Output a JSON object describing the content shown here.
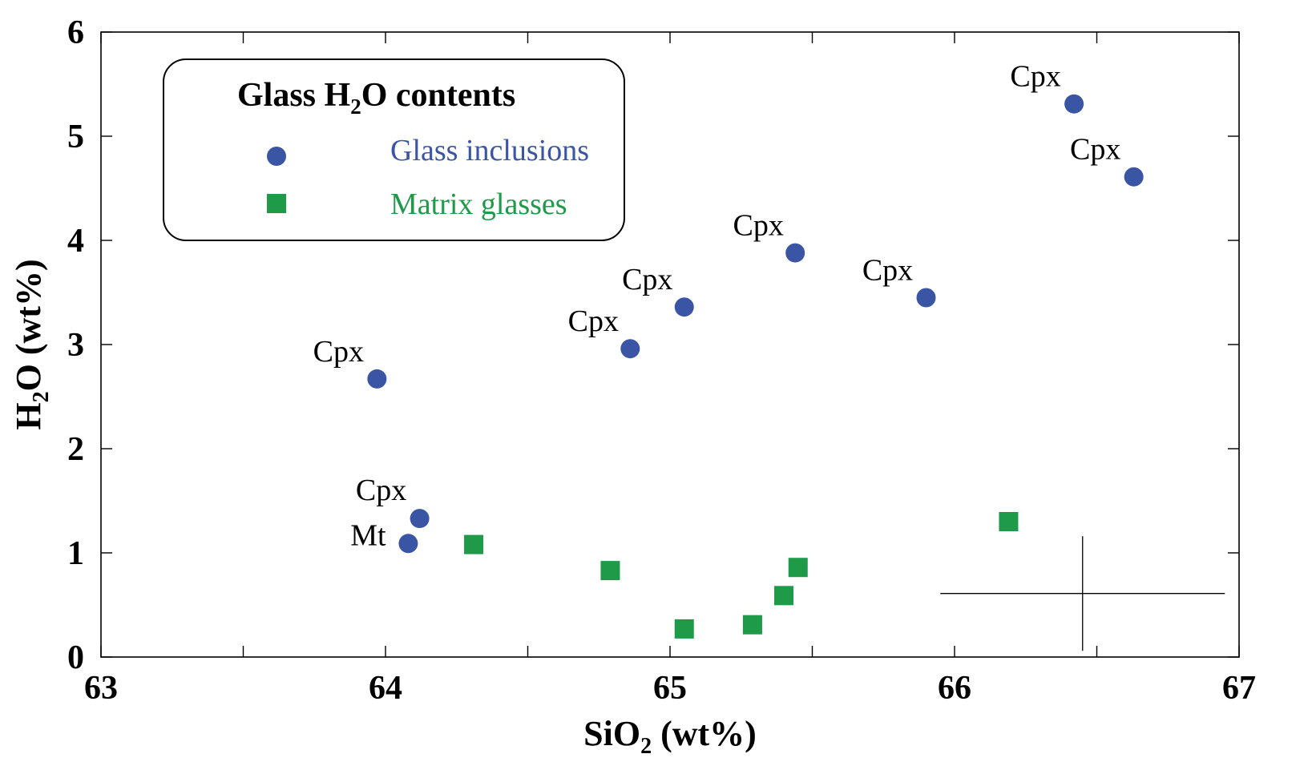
{
  "chart_data": {
    "type": "scatter",
    "xlabel": "SiO",
    "xlabel_sub": "2",
    "xlabel_suffix": " (wt%)",
    "ylabel": "H",
    "ylabel_sub": "2",
    "ylabel_suffix": "O (wt%)",
    "xlim": [
      63,
      67
    ],
    "ylim": [
      0,
      6
    ],
    "x_ticks": [
      "63",
      "64",
      "65",
      "66",
      "67"
    ],
    "y_ticks": [
      "0",
      "1",
      "2",
      "3",
      "4",
      "5",
      "6"
    ],
    "grid": false,
    "legend": {
      "title": "Glass H",
      "title_sub": "2",
      "title_suffix": "O contents",
      "placement": "top-left"
    },
    "series": [
      {
        "name": "Glass inclusions",
        "marker": "circle",
        "color": "#3a55a4",
        "points": [
          {
            "x": 63.97,
            "y": 2.67,
            "label": "Cpx"
          },
          {
            "x": 64.12,
            "y": 1.33,
            "label": "Cpx"
          },
          {
            "x": 64.08,
            "y": 1.09,
            "label": "Mt"
          },
          {
            "x": 64.86,
            "y": 2.96,
            "label": "Cpx"
          },
          {
            "x": 65.05,
            "y": 3.36,
            "label": "Cpx"
          },
          {
            "x": 65.44,
            "y": 3.88,
            "label": "Cpx"
          },
          {
            "x": 65.9,
            "y": 3.45,
            "label": "Cpx"
          },
          {
            "x": 66.42,
            "y": 5.31,
            "label": "Cpx"
          },
          {
            "x": 66.63,
            "y": 4.61,
            "label": "Cpx"
          }
        ]
      },
      {
        "name": "Matrix glasses",
        "marker": "square",
        "color": "#1e9a48",
        "points": [
          {
            "x": 64.31,
            "y": 1.08
          },
          {
            "x": 64.79,
            "y": 0.83
          },
          {
            "x": 65.05,
            "y": 0.27
          },
          {
            "x": 65.29,
            "y": 0.31
          },
          {
            "x": 65.4,
            "y": 0.59
          },
          {
            "x": 65.45,
            "y": 0.86
          },
          {
            "x": 66.19,
            "y": 1.3
          }
        ]
      }
    ],
    "error_bar": {
      "x": 66.45,
      "y": 0.61,
      "x_err": 0.5,
      "y_err": 0.55
    }
  }
}
